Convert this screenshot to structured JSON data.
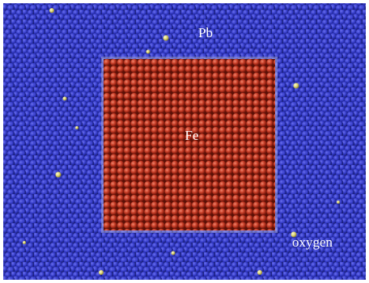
{
  "labels": {
    "lead": "Pb",
    "iron": "Fe",
    "oxygen": "oxygen"
  }
}
